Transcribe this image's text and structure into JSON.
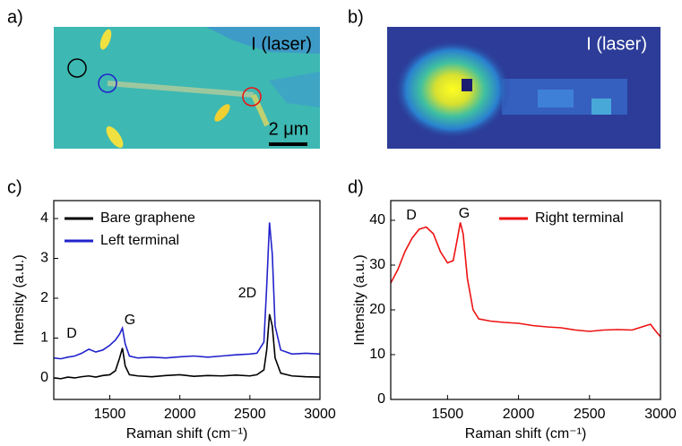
{
  "images": [
    {
      "panel_label": "a)",
      "caption": "I (laser)",
      "scale_bar": "2 μm"
    },
    {
      "panel_label": "b)",
      "caption": "I (laser)"
    }
  ],
  "chart_data": [
    {
      "type": "line",
      "panel_label": "c)",
      "x_label": "Raman shift (cm⁻¹)",
      "y_label": "Intensity (a.u.)",
      "xlim": [
        1100,
        3000
      ],
      "ylim": [
        -0.54,
        4.45
      ],
      "xticks": [
        1500,
        2000,
        2500,
        3000
      ],
      "yticks": [
        0,
        1,
        2,
        3,
        4
      ],
      "legend": "upper left",
      "annotations": [
        "D",
        "G",
        "2D"
      ],
      "x": [
        1100,
        1150,
        1200,
        1250,
        1300,
        1350,
        1400,
        1450,
        1500,
        1540,
        1570,
        1590,
        1610,
        1640,
        1700,
        1800,
        1900,
        2000,
        2100,
        2200,
        2300,
        2400,
        2500,
        2550,
        2600,
        2620,
        2640,
        2660,
        2680,
        2720,
        2800,
        2900,
        3000
      ],
      "series": [
        {
          "name": "Bare graphene",
          "color": "#000000",
          "values": [
            0,
            -0.02,
            0.02,
            0,
            0.03,
            0.05,
            0.02,
            0.06,
            0.08,
            0.18,
            0.5,
            0.75,
            0.3,
            0.08,
            0.05,
            0.03,
            0.06,
            0.08,
            0.04,
            0.06,
            0.05,
            0.07,
            0.05,
            0.08,
            0.2,
            0.7,
            1.6,
            1.3,
            0.5,
            0.12,
            0.05,
            0.03,
            0.02
          ]
        },
        {
          "name": "Left terminal",
          "color": "#2222cc",
          "values": [
            0.5,
            0.48,
            0.52,
            0.55,
            0.62,
            0.72,
            0.65,
            0.7,
            0.82,
            0.95,
            1.1,
            1.25,
            0.85,
            0.55,
            0.5,
            0.52,
            0.5,
            0.53,
            0.55,
            0.52,
            0.55,
            0.58,
            0.6,
            0.62,
            0.9,
            2.3,
            3.9,
            3.1,
            1.3,
            0.7,
            0.6,
            0.62,
            0.6
          ]
        }
      ]
    },
    {
      "type": "line",
      "panel_label": "d)",
      "x_label": "Raman shift (cm⁻¹)",
      "y_label": "Intensity (a.u.)",
      "xlim": [
        1100,
        3000
      ],
      "ylim": [
        0,
        44.4
      ],
      "xticks": [
        1500,
        2000,
        2500,
        3000
      ],
      "yticks": [
        0,
        10,
        20,
        30,
        40
      ],
      "legend": "upper right",
      "annotations": [
        "D",
        "G"
      ],
      "x": [
        1100,
        1150,
        1200,
        1250,
        1300,
        1350,
        1400,
        1450,
        1500,
        1540,
        1570,
        1590,
        1610,
        1640,
        1680,
        1720,
        1800,
        1900,
        2000,
        2100,
        2200,
        2300,
        2400,
        2500,
        2600,
        2700,
        2800,
        2850,
        2900,
        2930,
        2960,
        3000
      ],
      "series": [
        {
          "name": "Right terminal",
          "color": "#ee1111",
          "values": [
            26,
            29,
            33,
            36,
            38,
            38.5,
            37,
            33,
            30.5,
            31,
            36,
            39.5,
            37,
            27,
            20,
            18,
            17.5,
            17.2,
            17,
            16.5,
            16.2,
            16,
            15.5,
            15.2,
            15.5,
            15.6,
            15.5,
            16,
            16.5,
            16.8,
            15.5,
            14
          ]
        }
      ]
    }
  ]
}
